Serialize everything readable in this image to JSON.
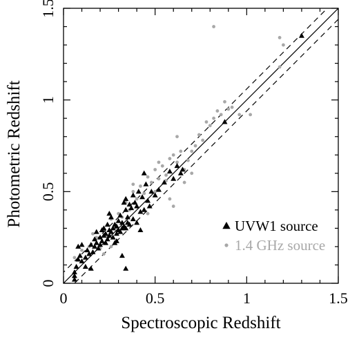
{
  "chart_data": {
    "type": "scatter",
    "xlabel": "Spectroscopic Redshift",
    "ylabel": "Photometric Redshift",
    "xlim": [
      0,
      1.5
    ],
    "ylim": [
      0,
      1.5
    ],
    "xticks": [
      "0",
      "0.5",
      "1",
      "1.5"
    ],
    "yticks": [
      "0",
      "0.5",
      "1",
      "1.5"
    ],
    "legend_position": "bottom-right",
    "lines": [
      {
        "style": "solid",
        "slope": 1,
        "intercept": 0
      },
      {
        "style": "dashed",
        "slope": 1,
        "intercept": 0.06
      },
      {
        "style": "dashed",
        "slope": 1,
        "intercept": -0.06
      }
    ],
    "series": [
      {
        "name": "UVW1 source",
        "marker": "triangle",
        "color": "#000000",
        "points": [
          [
            0.06,
            0.02
          ],
          [
            0.06,
            0.04
          ],
          [
            0.06,
            0.06
          ],
          [
            0.07,
            0.09
          ],
          [
            0.08,
            0.13
          ],
          [
            0.08,
            0.2
          ],
          [
            0.09,
            0.15
          ],
          [
            0.1,
            0.12
          ],
          [
            0.1,
            0.21
          ],
          [
            0.12,
            0.09
          ],
          [
            0.12,
            0.14
          ],
          [
            0.13,
            0.18
          ],
          [
            0.14,
            0.16
          ],
          [
            0.15,
            0.08
          ],
          [
            0.15,
            0.21
          ],
          [
            0.16,
            0.17
          ],
          [
            0.17,
            0.2
          ],
          [
            0.17,
            0.24
          ],
          [
            0.18,
            0.22
          ],
          [
            0.18,
            0.28
          ],
          [
            0.19,
            0.19
          ],
          [
            0.2,
            0.21
          ],
          [
            0.2,
            0.25
          ],
          [
            0.21,
            0.23
          ],
          [
            0.21,
            0.29
          ],
          [
            0.22,
            0.26
          ],
          [
            0.22,
            0.3
          ],
          [
            0.23,
            0.22
          ],
          [
            0.23,
            0.27
          ],
          [
            0.24,
            0.24
          ],
          [
            0.24,
            0.32
          ],
          [
            0.25,
            0.26
          ],
          [
            0.25,
            0.29
          ],
          [
            0.26,
            0.28
          ],
          [
            0.26,
            0.36
          ],
          [
            0.27,
            0.25
          ],
          [
            0.27,
            0.3
          ],
          [
            0.28,
            0.32
          ],
          [
            0.28,
            0.22
          ],
          [
            0.29,
            0.27
          ],
          [
            0.29,
            0.31
          ],
          [
            0.3,
            0.29
          ],
          [
            0.3,
            0.34
          ],
          [
            0.31,
            0.28
          ],
          [
            0.31,
            0.37
          ],
          [
            0.32,
            0.3
          ],
          [
            0.32,
            0.33
          ],
          [
            0.33,
            0.31
          ],
          [
            0.33,
            0.44
          ],
          [
            0.34,
            0.3
          ],
          [
            0.34,
            0.4
          ],
          [
            0.35,
            0.36
          ],
          [
            0.35,
            0.33
          ],
          [
            0.36,
            0.43
          ],
          [
            0.36,
            0.32
          ],
          [
            0.37,
            0.41
          ],
          [
            0.38,
            0.35
          ],
          [
            0.38,
            0.48
          ],
          [
            0.39,
            0.44
          ],
          [
            0.4,
            0.42
          ],
          [
            0.4,
            0.33
          ],
          [
            0.41,
            0.5
          ],
          [
            0.42,
            0.39
          ],
          [
            0.43,
            0.47
          ],
          [
            0.44,
            0.4
          ],
          [
            0.45,
            0.54
          ],
          [
            0.46,
            0.45
          ],
          [
            0.47,
            0.42
          ],
          [
            0.48,
            0.5
          ],
          [
            0.5,
            0.48
          ],
          [
            0.52,
            0.51
          ],
          [
            0.55,
            0.55
          ],
          [
            0.58,
            0.61
          ],
          [
            0.6,
            0.57
          ],
          [
            0.62,
            0.64
          ],
          [
            0.64,
            0.6
          ],
          [
            0.65,
            0.62
          ],
          [
            0.42,
            0.29
          ],
          [
            0.34,
            0.46
          ],
          [
            0.29,
            0.23
          ],
          [
            0.25,
            0.38
          ],
          [
            0.44,
            0.6
          ],
          [
            0.34,
            0.08
          ],
          [
            0.32,
            0.15
          ],
          [
            0.88,
            0.88
          ],
          [
            1.3,
            1.35
          ]
        ]
      },
      {
        "name": "1.4 GHz source",
        "marker": "circle",
        "color": "#a8a8a8",
        "points": [
          [
            0.06,
            0.14
          ],
          [
            0.1,
            0.18
          ],
          [
            0.14,
            0.2
          ],
          [
            0.16,
            0.27
          ],
          [
            0.18,
            0.25
          ],
          [
            0.2,
            0.19
          ],
          [
            0.22,
            0.3
          ],
          [
            0.24,
            0.26
          ],
          [
            0.26,
            0.35
          ],
          [
            0.28,
            0.3
          ],
          [
            0.3,
            0.38
          ],
          [
            0.32,
            0.36
          ],
          [
            0.34,
            0.44
          ],
          [
            0.36,
            0.4
          ],
          [
            0.38,
            0.5
          ],
          [
            0.4,
            0.46
          ],
          [
            0.42,
            0.53
          ],
          [
            0.44,
            0.49
          ],
          [
            0.46,
            0.58
          ],
          [
            0.48,
            0.55
          ],
          [
            0.5,
            0.62
          ],
          [
            0.52,
            0.57
          ],
          [
            0.54,
            0.64
          ],
          [
            0.56,
            0.59
          ],
          [
            0.58,
            0.68
          ],
          [
            0.6,
            0.7
          ],
          [
            0.62,
            0.66
          ],
          [
            0.64,
            0.72
          ],
          [
            0.66,
            0.62
          ],
          [
            0.68,
            0.67
          ],
          [
            0.7,
            0.72
          ],
          [
            0.72,
            0.75
          ],
          [
            0.74,
            0.81
          ],
          [
            0.76,
            0.78
          ],
          [
            0.78,
            0.88
          ],
          [
            0.8,
            0.86
          ],
          [
            0.82,
            0.9
          ],
          [
            0.84,
            0.94
          ],
          [
            0.86,
            0.92
          ],
          [
            0.88,
            0.99
          ],
          [
            0.9,
            0.95
          ],
          [
            0.92,
            0.96
          ],
          [
            0.96,
            0.92
          ],
          [
            1.02,
            0.92
          ],
          [
            0.82,
            1.4
          ],
          [
            1.18,
            1.34
          ],
          [
            1.18,
            1.18
          ],
          [
            1.2,
            1.3
          ],
          [
            0.62,
            0.8
          ],
          [
            0.6,
            0.42
          ],
          [
            0.56,
            0.56
          ],
          [
            0.5,
            0.5
          ],
          [
            0.46,
            0.38
          ],
          [
            0.38,
            0.54
          ],
          [
            0.26,
            0.2
          ],
          [
            0.22,
            0.16
          ],
          [
            0.58,
            0.46
          ],
          [
            0.66,
            0.55
          ],
          [
            0.52,
            0.66
          ],
          [
            0.7,
            0.6
          ]
        ]
      }
    ]
  }
}
